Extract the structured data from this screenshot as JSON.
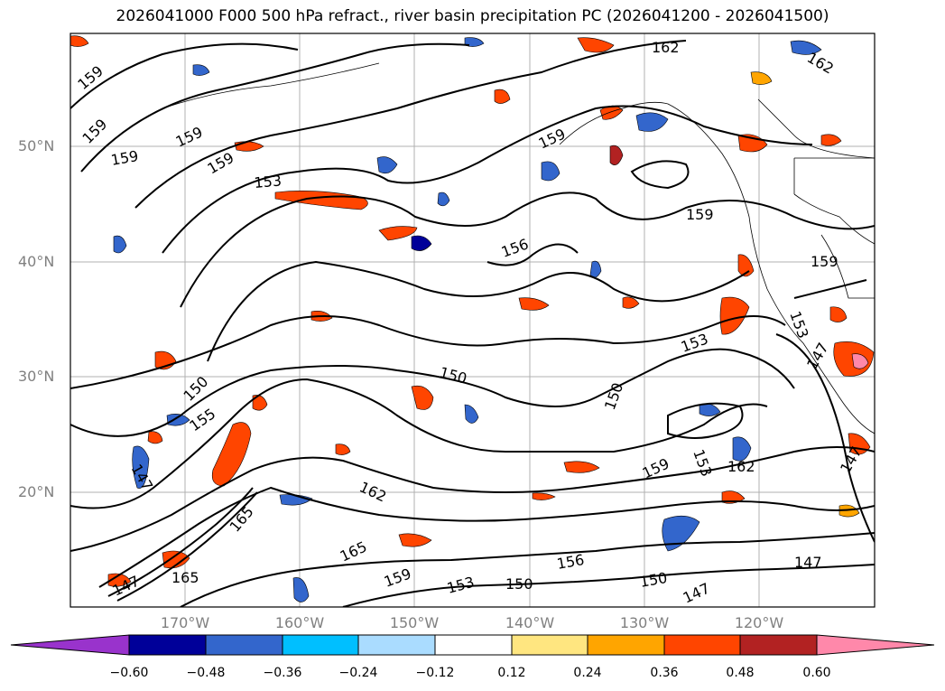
{
  "title": "2026041000 F000 500 hPa refract., river basin precipitation PC (2026041200 - 2026041500)",
  "lat_labels": [
    "50°N",
    "40°N",
    "30°N",
    "20°N"
  ],
  "lon_labels": [
    "170°W",
    "160°W",
    "150°W",
    "140°W",
    "130°W",
    "120°W"
  ],
  "contour_labels": [
    "162",
    "162",
    "159",
    "159",
    "159",
    "159",
    "159",
    "153",
    "159",
    "156",
    "159",
    "153",
    "150",
    "150",
    "150",
    "153",
    "162",
    "159",
    "162",
    "165",
    "159",
    "153",
    "150",
    "156",
    "147",
    "147",
    "150",
    "147",
    "165",
    "155",
    "165",
    "153",
    "147",
    "147",
    "147",
    "159"
  ],
  "colorbar": {
    "ticks": [
      "−0.60",
      "−0.48",
      "−0.36",
      "−0.24",
      "−0.12",
      "0.12",
      "0.24",
      "0.36",
      "0.48",
      "0.60"
    ],
    "colors": [
      "#9933cc",
      "#000099",
      "#3366cc",
      "#00bfff",
      "#aadcff",
      "#ffffff",
      "#ffe680",
      "#ffa500",
      "#ff4500",
      "#b22222",
      "#ff88aa"
    ]
  }
}
